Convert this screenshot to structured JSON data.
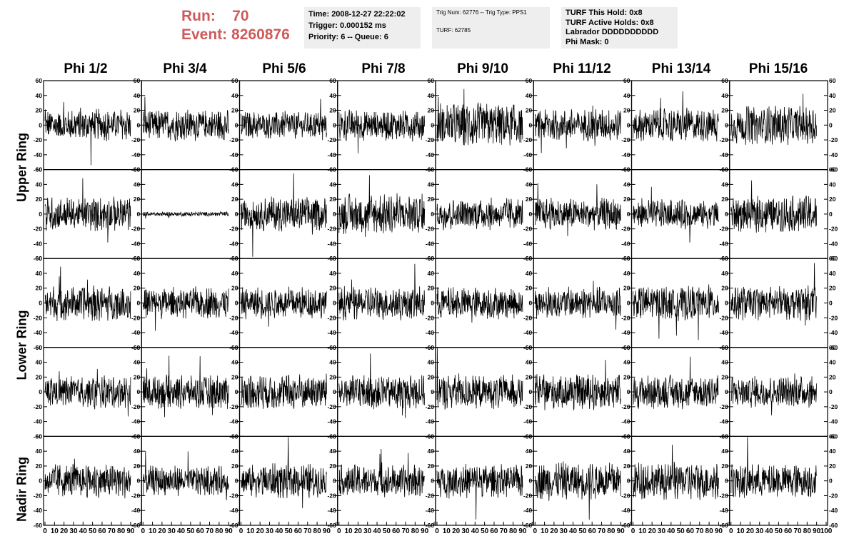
{
  "header": {
    "run_label": "Run:",
    "run_value": "70",
    "event_label": "Event:",
    "event_value": "8260876"
  },
  "info_time": {
    "time": "Time: 2008-12-27 22:22:02",
    "trigger": "Trigger: 0.000152 ms",
    "priority": "Priority: 6 -- Queue: 6"
  },
  "info_trig": {
    "trig": "Trig Num: 62776 -- Trig Type: PPS1",
    "turf": "TURF: 62785"
  },
  "info_turf": {
    "hold": "TURF This Hold: 0x8",
    "active": "TURF Active Holds: 0x8",
    "labrador": "Labrador DDDDDDDDDD",
    "phimask": "Phi Mask: 0"
  },
  "columns": [
    "Phi 1/2",
    "Phi 3/4",
    "Phi 5/6",
    "Phi 7/8",
    "Phi 9/10",
    "Phi 11/12",
    "Phi 13/14",
    "Phi 15/16"
  ],
  "rows": [
    "Upper Ring",
    "Lower Ring",
    "Nadir Ring"
  ],
  "chart_data": {
    "type": "line",
    "grid": false,
    "rows": 5,
    "cols": 8,
    "xlim": [
      0,
      100
    ],
    "ylim": [
      -60,
      60
    ],
    "x_ticks": [
      "0",
      "10",
      "20",
      "30",
      "40",
      "50",
      "60",
      "70",
      "80",
      "90",
      "100"
    ],
    "y_ticks": [
      "60",
      "40",
      "20",
      "0",
      "-20",
      "-40",
      "-60"
    ],
    "samples": 90,
    "note_amplitudes": [
      [
        14,
        14,
        12,
        14,
        20,
        14,
        15,
        17
      ],
      [
        15,
        2,
        15,
        18,
        14,
        14,
        13,
        16
      ],
      [
        16,
        14,
        14,
        15,
        14,
        14,
        15,
        15
      ],
      [
        14,
        15,
        16,
        15,
        15,
        16,
        15,
        14
      ],
      [
        15,
        13,
        15,
        14,
        15,
        17,
        17,
        15
      ]
    ]
  }
}
